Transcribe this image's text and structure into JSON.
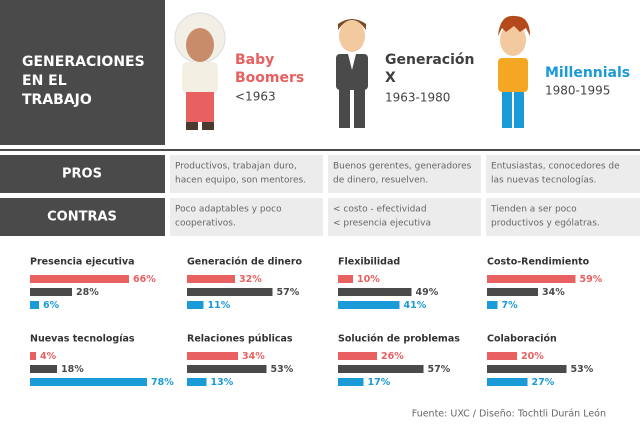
{
  "header": {
    "title": [
      "GENERACIONES",
      "EN EL",
      "TRABAJO"
    ]
  },
  "generations": [
    {
      "name": [
        "Baby",
        "Boomers"
      ],
      "years": "<1963",
      "color": "#e8605f"
    },
    {
      "name": [
        "Generación",
        "X"
      ],
      "years": "1963-1980",
      "color": "#3f3f3f"
    },
    {
      "name": [
        "Millennials"
      ],
      "years": "1980-1995",
      "color": "#1a9ad6"
    }
  ],
  "table": {
    "rows": [
      {
        "label": "PROS",
        "cells": [
          [
            "Productivos, trabajan duro,",
            "hacen equipo, son mentores."
          ],
          [
            "Buenos gerentes, generadores",
            "de dinero, resuelven."
          ],
          [
            "Entusiastas, conocedores de",
            "las nuevas tecnologías."
          ]
        ]
      },
      {
        "label": "CONTRAS",
        "cells": [
          [
            "Poco adaptables y poco",
            "cooperativos."
          ],
          [
            "< costo - efectividad",
            "< presencia ejecutiva"
          ],
          [
            "Tienden a ser poco",
            "productivos y ególatras."
          ]
        ]
      }
    ]
  },
  "chart_data": [
    {
      "type": "bar",
      "title": "Presencia ejecutiva",
      "values": [
        66,
        28,
        6
      ],
      "value_labels": [
        "66%",
        "28%",
        "6%"
      ],
      "colors": [
        "#e8605f",
        "#4a4a4a",
        "#1a9ad6"
      ],
      "xlim": [
        0,
        100
      ]
    },
    {
      "type": "bar",
      "title": "Generación de dinero",
      "values": [
        32,
        57,
        11
      ],
      "value_labels": [
        "32%",
        "57%",
        "11%"
      ],
      "colors": [
        "#e8605f",
        "#4a4a4a",
        "#1a9ad6"
      ],
      "xlim": [
        0,
        100
      ]
    },
    {
      "type": "bar",
      "title": "Flexibilidad",
      "values": [
        10,
        49,
        41
      ],
      "value_labels": [
        "10%",
        "49%",
        "41%"
      ],
      "colors": [
        "#e8605f",
        "#4a4a4a",
        "#1a9ad6"
      ],
      "xlim": [
        0,
        100
      ]
    },
    {
      "type": "bar",
      "title": "Costo-Rendimiento",
      "values": [
        59,
        34,
        7
      ],
      "value_labels": [
        "59%",
        "34%",
        "7%"
      ],
      "colors": [
        "#e8605f",
        "#4a4a4a",
        "#1a9ad6"
      ],
      "xlim": [
        0,
        100
      ]
    },
    {
      "type": "bar",
      "title": "Nuevas tecnologías",
      "values": [
        4,
        18,
        78
      ],
      "value_labels": [
        "4%",
        "18%",
        "78%"
      ],
      "colors": [
        "#e8605f",
        "#4a4a4a",
        "#1a9ad6"
      ],
      "xlim": [
        0,
        100
      ]
    },
    {
      "type": "bar",
      "title": "Relaciones públicas",
      "values": [
        34,
        53,
        13
      ],
      "value_labels": [
        "34%",
        "53%",
        "13%"
      ],
      "colors": [
        "#e8605f",
        "#4a4a4a",
        "#1a9ad6"
      ],
      "xlim": [
        0,
        100
      ]
    },
    {
      "type": "bar",
      "title": "Solución de problemas",
      "values": [
        26,
        57,
        17
      ],
      "value_labels": [
        "26%",
        "57%",
        "17%"
      ],
      "colors": [
        "#e8605f",
        "#4a4a4a",
        "#1a9ad6"
      ],
      "xlim": [
        0,
        100
      ]
    },
    {
      "type": "bar",
      "title": "Colaboración",
      "values": [
        20,
        53,
        27
      ],
      "value_labels": [
        "20%",
        "53%",
        "27%"
      ],
      "colors": [
        "#e8605f",
        "#4a4a4a",
        "#1a9ad6"
      ],
      "xlim": [
        0,
        100
      ]
    }
  ],
  "source": "Fuente: UXC / Diseño: Tochtli Durán León"
}
